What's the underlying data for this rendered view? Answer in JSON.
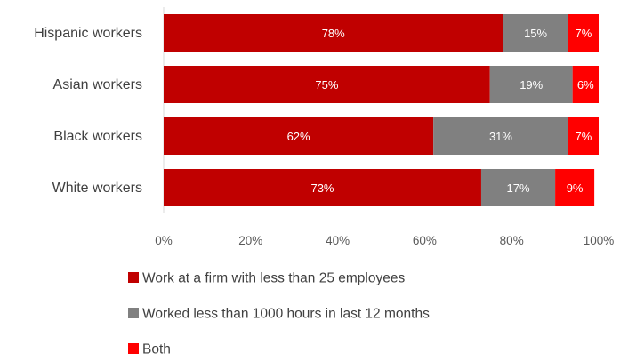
{
  "chart_data": {
    "type": "bar",
    "orientation": "horizontal",
    "stacked": true,
    "categories": [
      "Hispanic workers",
      "Asian workers",
      "Black workers",
      "White workers"
    ],
    "series": [
      {
        "name": "Work at a firm with less than 25 employees",
        "values": [
          78,
          75,
          62,
          73
        ],
        "labels": [
          "78%",
          "75%",
          "62%",
          "73%"
        ],
        "color": "#C00000",
        "label_color": "#ffffff"
      },
      {
        "name": "Worked less than 1000 hours in last 12 months",
        "values": [
          15,
          19,
          31,
          17
        ],
        "labels": [
          "15%",
          "19%",
          "31%",
          "17%"
        ],
        "color": "#808080",
        "label_color": "#ffffff"
      },
      {
        "name": "Both",
        "values": [
          7,
          6,
          7,
          9
        ],
        "labels": [
          "7%",
          "6%",
          "7%",
          "9%"
        ],
        "color": "#FF0000",
        "label_color": "#ffffff"
      }
    ],
    "xlim": [
      0,
      100
    ],
    "xticks": [
      0,
      20,
      40,
      60,
      80,
      100
    ],
    "xtick_labels": [
      "0%",
      "20%",
      "40%",
      "60%",
      "80%",
      "100%"
    ],
    "grid": false,
    "legend_position": "bottom"
  }
}
